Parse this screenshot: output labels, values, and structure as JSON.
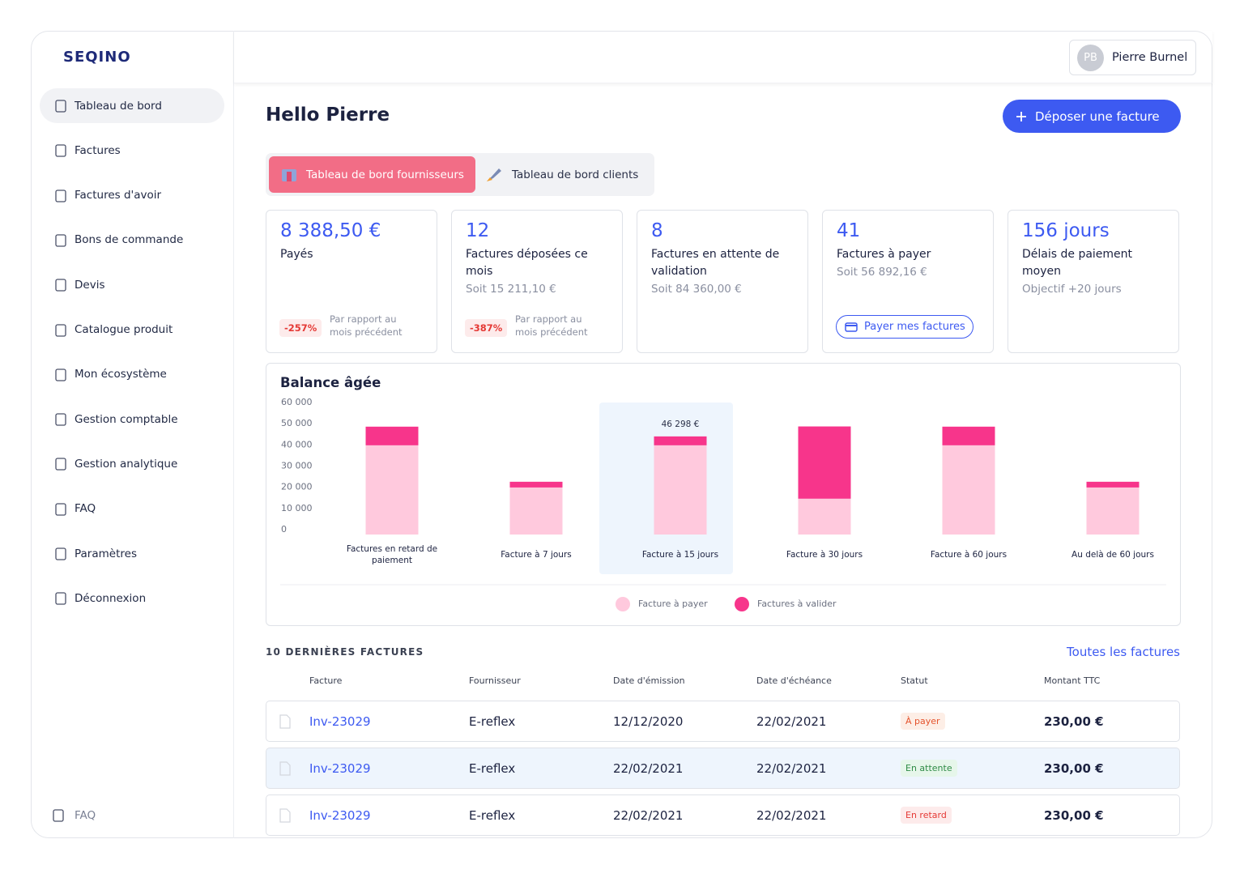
{
  "brand": "SEQINO",
  "user": {
    "initials": "PB",
    "name": "Pierre Burnel"
  },
  "nav": [
    "Tableau de bord",
    "Factures",
    "Factures d'avoir",
    "Bons de commande",
    "Devis",
    "Catalogue produit",
    "Mon écosystème",
    "Gestion comptable",
    "Gestion analytique",
    "FAQ",
    "Paramètres",
    "Déconnexion"
  ],
  "nav_footer": "FAQ",
  "greeting": "Hello Pierre",
  "upload_button": "Déposer une facture",
  "tabs": [
    "Tableau de bord fournisseurs",
    "Tableau de bord clients"
  ],
  "cards": [
    {
      "value": "8 388,50 €",
      "label": "Payés",
      "badge": "-257%",
      "comparison": "Par rapport au mois précédent"
    },
    {
      "value": "12",
      "label": "Factures déposées ce mois",
      "sub": "Soit 15 211,10 €",
      "badge": "-387%",
      "comparison": "Par rapport au mois précédent"
    },
    {
      "value": "8",
      "label": "Factures en attente de validation",
      "sub": "Soit 84 360,00 €"
    },
    {
      "value": "41",
      "label": "Factures à payer",
      "sub": "Soit 56 892,16 €",
      "button": "Payer mes factures"
    },
    {
      "value": "156 jours",
      "label": "Délais de paiement moyen",
      "sub": "Objectif +20 jours"
    }
  ],
  "chart_data": {
    "type": "stacked-bar",
    "title": "Balance âgée",
    "categories": [
      "Factures en retard de paiement",
      "Facture à 7 jours",
      "Facture à 15 jours",
      "Facture à 30 jours",
      "Facture à 60 jours",
      "Au delà de 60 jours"
    ],
    "series": [
      {
        "name": "Facture à payer",
        "color": "#ffc9dd",
        "values": [
          42100,
          22200,
          42100,
          16900,
          42100,
          22200
        ]
      },
      {
        "name": "Factures à valider",
        "color": "#f7358b",
        "values": [
          8800,
          2700,
          4198,
          34100,
          8800,
          2700
        ]
      }
    ],
    "ylim": [
      0,
      60000
    ],
    "yticks": [
      0,
      {
        "value": 10000,
        "label": "10 000"
      },
      {
        "value": 20000,
        "label": "20 000"
      },
      {
        "value": 30000,
        "label": "30 000"
      },
      {
        "value": 40000,
        "label": "40 000"
      },
      {
        "value": 50000,
        "label": "50 000"
      },
      {
        "value": 60000,
        "label": "60 000"
      }
    ],
    "annotation": "46 298 €",
    "highlight": 2,
    "grid": false,
    "legend": "bottom"
  },
  "table": {
    "title": "10 DERNIÈRES FACTURES",
    "link": "Toutes les factures",
    "columns": [
      "Facture",
      "Fournisseur",
      "Date d'émission",
      "Date d'échéance",
      "Statut",
      "Montant TTC"
    ],
    "rows": [
      [
        "Inv-23029",
        "E-reflex",
        "12/12/2020",
        "22/02/2021",
        "À payer",
        "230,00 €"
      ],
      [
        "Inv-23029",
        "E-reflex",
        "22/02/2021",
        "22/02/2021",
        "En attente",
        "230,00 €"
      ],
      [
        "Inv-23029",
        "E-reflex",
        "22/02/2021",
        "22/02/2021",
        "En retard",
        "230,00 €"
      ]
    ]
  }
}
